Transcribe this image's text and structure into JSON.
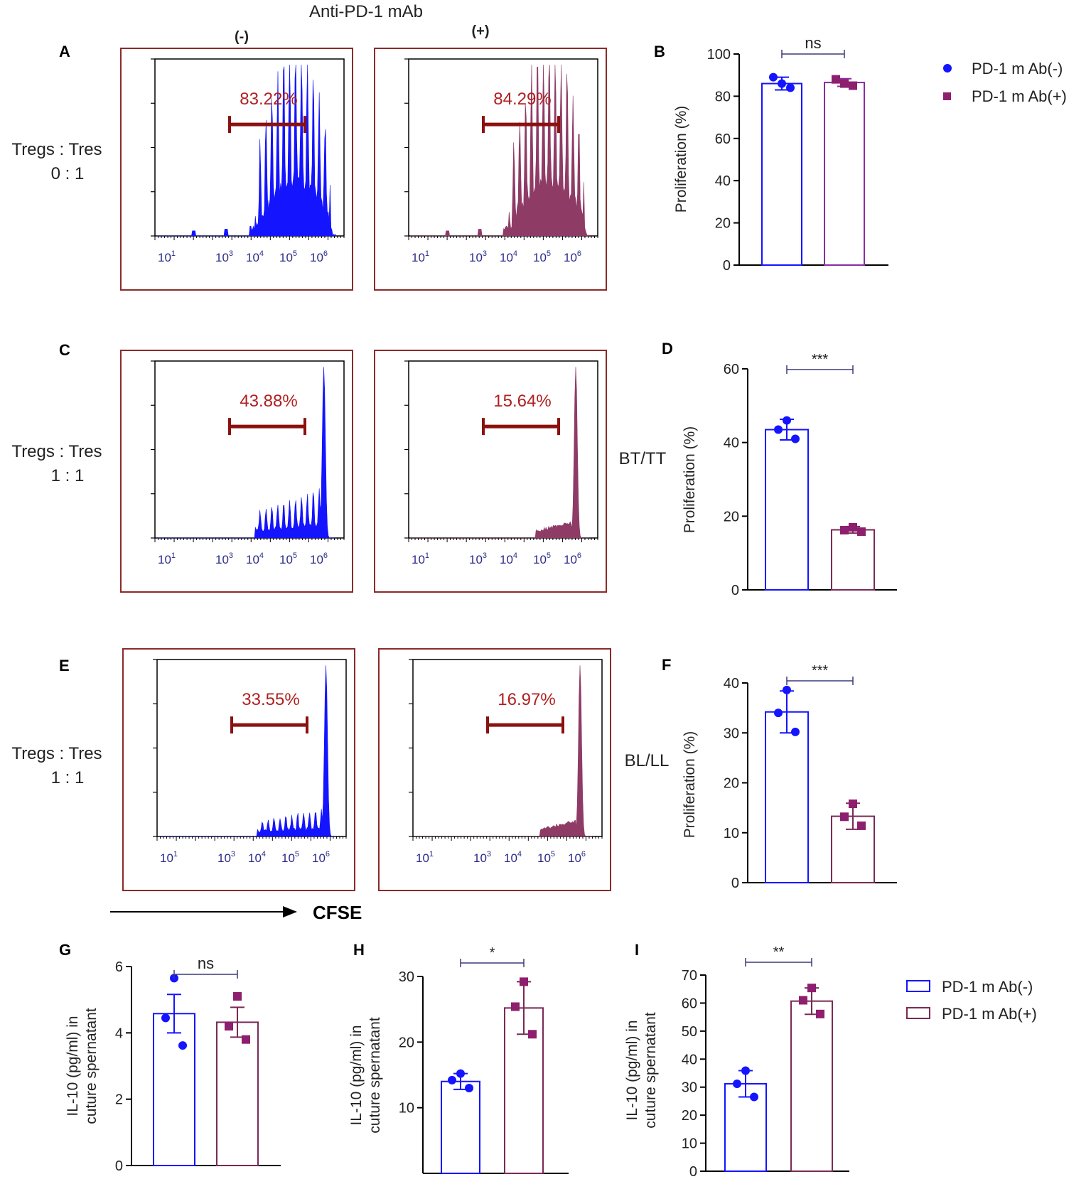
{
  "figure": {
    "header": "Anti-PD-1 mAb",
    "col_neg": "(-)",
    "col_pos": "(+)",
    "cfse_label": "CFSE",
    "ratio_prefix": "Tregs : Tres",
    "colors": {
      "neg": "#1414ff",
      "pos": "#8e3b66",
      "gate": "#8b1010",
      "frame": "#8b2a2a",
      "sig": "#3a3a7a",
      "pos_dot": "#8e1e6e"
    }
  },
  "legends": {
    "top": {
      "neg": "PD-1 m Ab(-)",
      "pos": "PD-1 m Ab(+)"
    },
    "bottom": {
      "neg": "PD-1 m Ab(-)",
      "pos": "PD-1 m Ab(+)"
    }
  },
  "flow_panels": [
    {
      "letter": "A",
      "ratio": "0 : 1",
      "x_ticks": [
        "10^1",
        "10^3",
        "10^4",
        "10^5",
        "10^6"
      ],
      "neg_gate_pct": "83.22%",
      "pos_gate_pct": "84.29%",
      "neg_shape": "broad",
      "pos_shape": "broad"
    },
    {
      "letter": "C",
      "ratio": "1 : 1",
      "x_ticks": [
        "10^1",
        "10^3",
        "10^4",
        "10^5",
        "10^6"
      ],
      "neg_gate_pct": "43.88%",
      "pos_gate_pct": "15.64%",
      "neg_shape": "medium",
      "pos_shape": "narrow"
    },
    {
      "letter": "E",
      "ratio": "1 : 1",
      "x_ticks": [
        "10^1",
        "10^3",
        "10^4",
        "10^5",
        "10^6"
      ],
      "neg_gate_pct": "33.55%",
      "pos_gate_pct": "16.97%",
      "neg_shape": "medium-low",
      "pos_shape": "narrow"
    }
  ],
  "chart_data": [
    {
      "panel": "B",
      "type": "bar",
      "ylabel": "Proliferation (%)",
      "ylim": [
        0,
        100
      ],
      "yticks": [
        0,
        20,
        40,
        60,
        80,
        100
      ],
      "categories": [
        "PD-1 m Ab(-)",
        "PD-1 m Ab(+)"
      ],
      "series": [
        {
          "name": "PD-1 m Ab(-)",
          "mean": 86,
          "err": 3,
          "points": [
            86,
            89,
            84
          ]
        },
        {
          "name": "PD-1 m Ab(+)",
          "mean": 86.5,
          "err": 1.8,
          "points": [
            86,
            88,
            85
          ]
        }
      ],
      "significance": "ns",
      "side_label": ""
    },
    {
      "panel": "D",
      "type": "bar",
      "ylabel": "Proliferation (%)",
      "ylim": [
        0,
        60
      ],
      "yticks": [
        0,
        20,
        40,
        60
      ],
      "categories": [
        "PD-1 m Ab(-)",
        "PD-1 m Ab(+)"
      ],
      "series": [
        {
          "name": "PD-1 m Ab(-)",
          "mean": 43.5,
          "err": 2.8,
          "points": [
            46,
            43.5,
            41
          ]
        },
        {
          "name": "PD-1 m Ab(+)",
          "mean": 16.3,
          "err": 0.9,
          "points": [
            17,
            16.2,
            15.8
          ]
        }
      ],
      "significance": "***",
      "side_label": "BT/TT"
    },
    {
      "panel": "F",
      "type": "bar",
      "ylabel": "Proliferation (%)",
      "ylim": [
        0,
        40
      ],
      "yticks": [
        0,
        10,
        20,
        30,
        40
      ],
      "categories": [
        "PD-1 m Ab(-)",
        "PD-1 m Ab(+)"
      ],
      "series": [
        {
          "name": "PD-1 m Ab(-)",
          "mean": 34.2,
          "err": 4.2,
          "points": [
            38.6,
            34,
            30.2
          ]
        },
        {
          "name": "PD-1 m Ab(+)",
          "mean": 13.3,
          "err": 2.6,
          "points": [
            15.8,
            13.2,
            11.4
          ]
        }
      ],
      "significance": "***",
      "side_label": "BL/LL"
    },
    {
      "panel": "G",
      "type": "bar",
      "ylabel": "IL-10 (pg/ml) in\ncuture spernatant",
      "ylim": [
        0,
        6
      ],
      "yticks": [
        0,
        2,
        4,
        6
      ],
      "categories": [
        "PD-1 m Ab(-)",
        "PD-1 m Ab(+)"
      ],
      "series": [
        {
          "name": "PD-1 m Ab(-)",
          "mean": 4.58,
          "err": 0.58,
          "points": [
            5.65,
            4.45,
            3.62
          ]
        },
        {
          "name": "PD-1 m Ab(+)",
          "mean": 4.32,
          "err": 0.45,
          "points": [
            5.1,
            4.2,
            3.8
          ]
        }
      ],
      "significance": "ns",
      "side_label": ""
    },
    {
      "panel": "H",
      "type": "bar",
      "ylabel": "IL-10 (pg/ml) in\ncuture spernatant",
      "ylim": [
        0,
        30
      ],
      "yticks": [
        10,
        20,
        30
      ],
      "categories": [
        "PD-1 m Ab(-)",
        "PD-1 m Ab(+)"
      ],
      "series": [
        {
          "name": "PD-1 m Ab(-)",
          "mean": 14,
          "err": 1.2,
          "points": [
            15.2,
            14.2,
            13.0
          ]
        },
        {
          "name": "PD-1 m Ab(+)",
          "mean": 25.2,
          "err": 4,
          "points": [
            29.2,
            25.4,
            21.2
          ]
        }
      ],
      "significance": "*",
      "side_label": ""
    },
    {
      "panel": "I",
      "type": "bar",
      "ylabel": "IL-10 (pg/ml) in\ncuture spernatant",
      "ylim": [
        0,
        70
      ],
      "yticks": [
        0,
        10,
        20,
        30,
        40,
        50,
        60,
        70
      ],
      "categories": [
        "PD-1 m Ab(-)",
        "PD-1 m Ab(+)"
      ],
      "series": [
        {
          "name": "PD-1 m Ab(-)",
          "mean": 31.2,
          "err": 4.7,
          "points": [
            35.9,
            31.2,
            26.5
          ]
        },
        {
          "name": "PD-1 m Ab(+)",
          "mean": 60.7,
          "err": 4.7,
          "points": [
            65.4,
            61,
            56.1
          ]
        }
      ],
      "significance": "**",
      "side_label": ""
    }
  ]
}
